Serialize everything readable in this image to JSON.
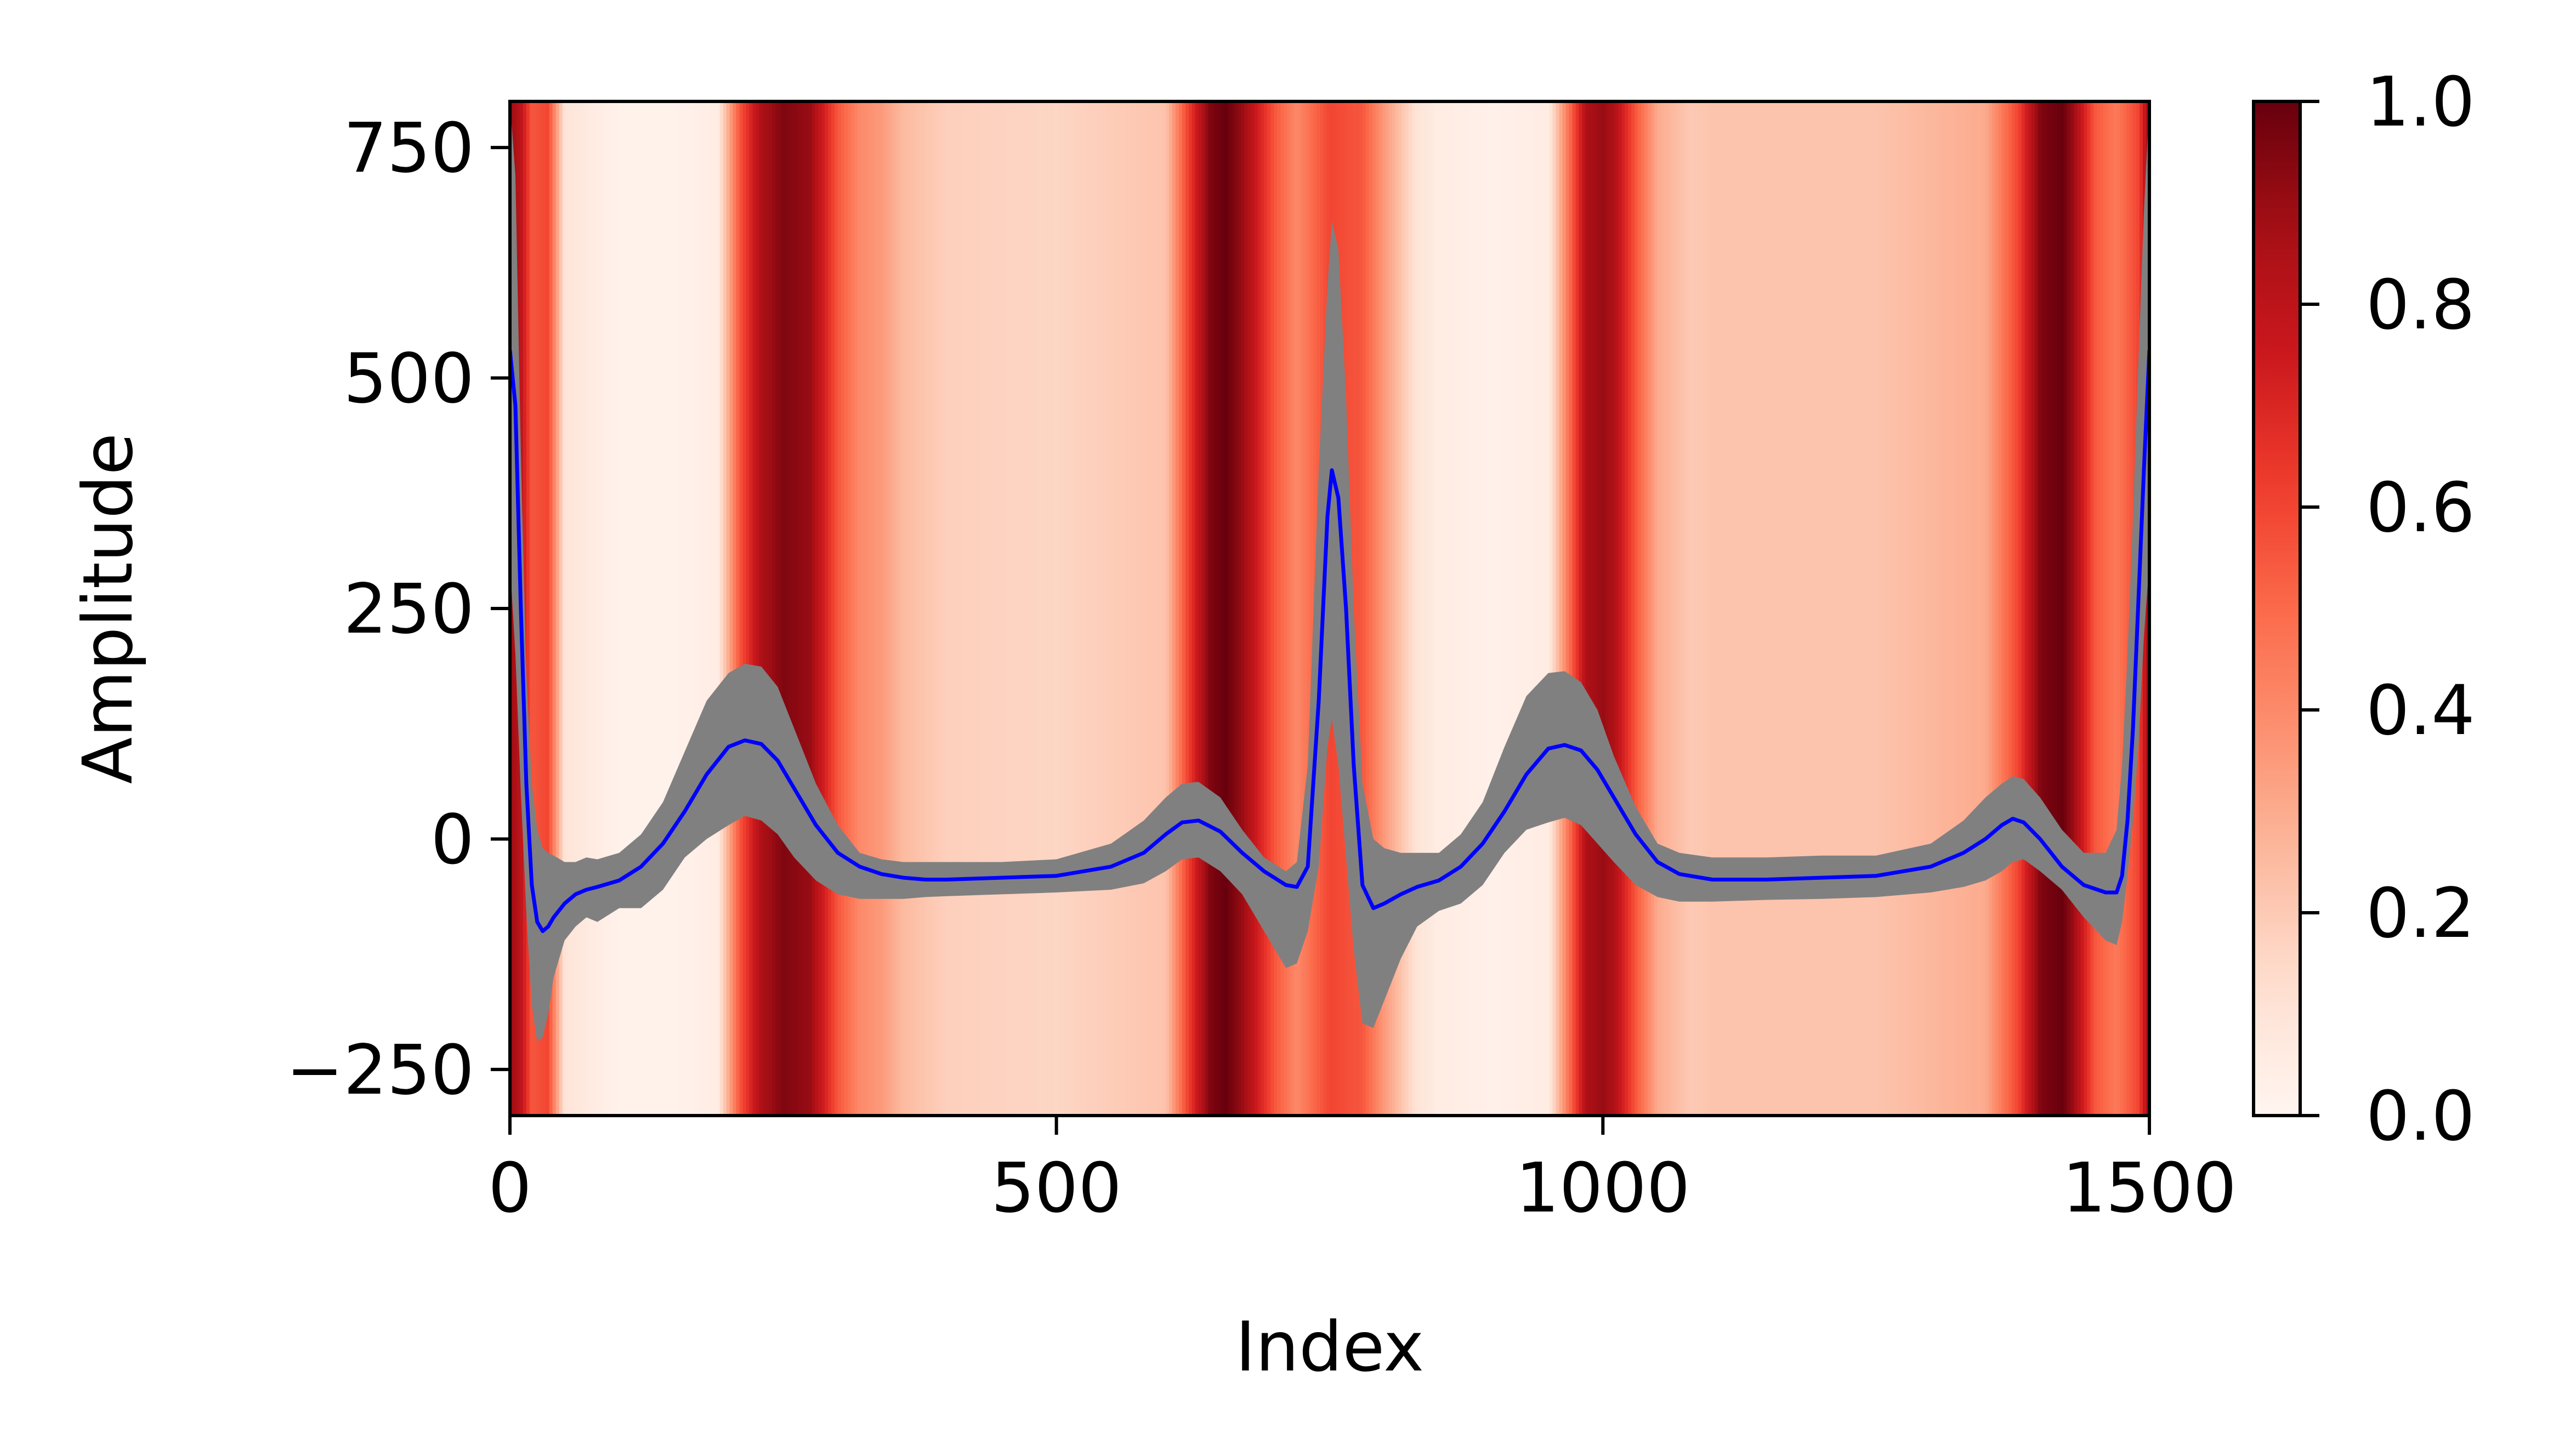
{
  "chart_data": {
    "type": "line",
    "xlabel": "Index",
    "ylabel": "Amplitude",
    "xlim": [
      0,
      1500
    ],
    "ylim": [
      -300,
      800
    ],
    "x_ticks": [
      0,
      500,
      1000,
      1500
    ],
    "x_tick_labels": [
      "0",
      "500",
      "1000",
      "1500"
    ],
    "y_ticks": [
      -250,
      0,
      250,
      500,
      750
    ],
    "y_tick_labels": [
      "−250",
      "0",
      "250",
      "500",
      "750"
    ],
    "grid": false,
    "legend": "none",
    "series": [
      {
        "role": "mean",
        "color": "#0000ff",
        "x": [
          0,
          5,
          10,
          15,
          20,
          25,
          30,
          35,
          40,
          50,
          60,
          70,
          80,
          100,
          120,
          140,
          160,
          180,
          200,
          215,
          230,
          245,
          260,
          280,
          300,
          320,
          340,
          360,
          380,
          400,
          450,
          500,
          550,
          580,
          600,
          615,
          630,
          650,
          670,
          690,
          710,
          720,
          730,
          740,
          748,
          752,
          758,
          765,
          772,
          780,
          790,
          800,
          815,
          830,
          850,
          870,
          890,
          910,
          930,
          950,
          965,
          980,
          995,
          1010,
          1030,
          1050,
          1070,
          1100,
          1150,
          1200,
          1250,
          1300,
          1330,
          1350,
          1365,
          1375,
          1385,
          1400,
          1420,
          1440,
          1460,
          1470,
          1475,
          1480,
          1485,
          1490,
          1495,
          1500
        ],
        "y": [
          530,
          470,
          250,
          60,
          -50,
          -90,
          -100,
          -95,
          -85,
          -70,
          -60,
          -55,
          -52,
          -45,
          -30,
          -5,
          30,
          70,
          100,
          107,
          103,
          85,
          55,
          15,
          -15,
          -30,
          -38,
          -42,
          -44,
          -44,
          -42,
          -40,
          -30,
          -15,
          5,
          18,
          20,
          8,
          -15,
          -35,
          -50,
          -52,
          -30,
          150,
          350,
          400,
          370,
          250,
          80,
          -50,
          -75,
          -70,
          -60,
          -52,
          -45,
          -30,
          -5,
          30,
          70,
          98,
          102,
          96,
          75,
          45,
          5,
          -25,
          -38,
          -44,
          -44,
          -42,
          -40,
          -30,
          -15,
          0,
          15,
          22,
          18,
          0,
          -30,
          -50,
          -58,
          -58,
          -40,
          20,
          120,
          260,
          400,
          530
        ]
      },
      {
        "role": "upper-band",
        "color": "#808080",
        "x": [
          0,
          5,
          10,
          15,
          20,
          25,
          30,
          35,
          40,
          50,
          60,
          70,
          80,
          100,
          120,
          140,
          160,
          180,
          200,
          215,
          230,
          245,
          260,
          280,
          300,
          320,
          340,
          360,
          380,
          400,
          450,
          500,
          550,
          580,
          600,
          615,
          630,
          650,
          670,
          690,
          710,
          720,
          730,
          740,
          748,
          752,
          758,
          765,
          772,
          780,
          790,
          800,
          815,
          830,
          850,
          870,
          890,
          910,
          930,
          950,
          965,
          980,
          995,
          1010,
          1030,
          1050,
          1070,
          1100,
          1150,
          1200,
          1250,
          1300,
          1330,
          1350,
          1365,
          1375,
          1385,
          1400,
          1420,
          1440,
          1460,
          1470,
          1475,
          1480,
          1485,
          1490,
          1495,
          1500
        ],
        "y": [
          800,
          720,
          420,
          180,
          60,
          10,
          -10,
          -15,
          -18,
          -25,
          -25,
          -20,
          -22,
          -15,
          5,
          40,
          95,
          150,
          180,
          190,
          187,
          165,
          120,
          60,
          15,
          -15,
          -22,
          -25,
          -25,
          -25,
          -25,
          -22,
          -5,
          20,
          45,
          60,
          62,
          45,
          10,
          -20,
          -35,
          -25,
          80,
          400,
          600,
          670,
          640,
          480,
          250,
          60,
          0,
          -10,
          -15,
          -15,
          -15,
          5,
          40,
          100,
          155,
          180,
          182,
          170,
          140,
          90,
          35,
          -5,
          -15,
          -20,
          -20,
          -18,
          -18,
          -5,
          20,
          45,
          60,
          68,
          65,
          45,
          10,
          -15,
          -15,
          10,
          80,
          200,
          350,
          520,
          680,
          800
        ]
      },
      {
        "role": "lower-band",
        "color": "#808080",
        "x": [
          0,
          5,
          10,
          15,
          20,
          25,
          30,
          35,
          40,
          50,
          60,
          70,
          80,
          100,
          120,
          140,
          160,
          180,
          200,
          215,
          230,
          245,
          260,
          280,
          300,
          320,
          340,
          360,
          380,
          400,
          450,
          500,
          550,
          580,
          600,
          615,
          630,
          650,
          670,
          690,
          710,
          720,
          730,
          740,
          748,
          752,
          758,
          765,
          772,
          780,
          790,
          800,
          815,
          830,
          850,
          870,
          890,
          910,
          930,
          950,
          965,
          980,
          995,
          1010,
          1030,
          1050,
          1070,
          1100,
          1150,
          1200,
          1250,
          1300,
          1330,
          1350,
          1365,
          1375,
          1385,
          1400,
          1420,
          1440,
          1460,
          1470,
          1475,
          1480,
          1485,
          1490,
          1495,
          1500
        ],
        "y": [
          300,
          200,
          50,
          -80,
          -180,
          -220,
          -215,
          -190,
          -150,
          -110,
          -95,
          -85,
          -90,
          -75,
          -75,
          -55,
          -20,
          0,
          15,
          25,
          20,
          5,
          -20,
          -45,
          -60,
          -65,
          -65,
          -65,
          -63,
          -62,
          -60,
          -58,
          -55,
          -48,
          -35,
          -22,
          -20,
          -35,
          -60,
          -100,
          -140,
          -135,
          -100,
          -30,
          100,
          130,
          80,
          -20,
          -120,
          -200,
          -205,
          -175,
          -130,
          -95,
          -78,
          -70,
          -50,
          -15,
          10,
          18,
          23,
          15,
          -5,
          -25,
          -50,
          -63,
          -68,
          -68,
          -66,
          -65,
          -63,
          -58,
          -52,
          -45,
          -35,
          -25,
          -22,
          -35,
          -55,
          -85,
          -110,
          -115,
          -90,
          -40,
          20,
          100,
          220,
          300
        ]
      }
    ],
    "heatmap_background": {
      "description_values": "column weights along x mapped to colorbar 0.0–1.0",
      "x": [
        0,
        10,
        20,
        35,
        50,
        100,
        150,
        190,
        210,
        230,
        250,
        275,
        300,
        320,
        340,
        360,
        400,
        500,
        600,
        620,
        640,
        655,
        670,
        700,
        720,
        750,
        780,
        800,
        830,
        850,
        900,
        950,
        970,
        985,
        1000,
        1010,
        1030,
        1050,
        1080,
        1100,
        1150,
        1250,
        1350,
        1380,
        1400,
        1420,
        1430,
        1450,
        1470,
        1490,
        1500
      ],
      "values": [
        0.9,
        0.8,
        0.55,
        0.6,
        0.1,
        0.02,
        0.02,
        0.05,
        0.55,
        0.85,
        0.95,
        0.9,
        0.55,
        0.4,
        0.35,
        0.25,
        0.18,
        0.16,
        0.22,
        0.6,
        0.95,
        1.0,
        0.9,
        0.55,
        0.4,
        0.6,
        0.55,
        0.35,
        0.1,
        0.05,
        0.03,
        0.05,
        0.5,
        0.85,
        0.9,
        0.85,
        0.55,
        0.3,
        0.2,
        0.22,
        0.22,
        0.22,
        0.3,
        0.6,
        0.95,
        1.0,
        0.9,
        0.55,
        0.45,
        0.6,
        0.9
      ]
    },
    "colorbar": {
      "colormap": "Reds",
      "range": [
        0,
        1
      ],
      "ticks": [
        0.0,
        0.2,
        0.4,
        0.6,
        0.8,
        1.0
      ],
      "tick_labels": [
        "0.0",
        "0.2",
        "0.4",
        "0.6",
        "0.8",
        "1.0"
      ]
    }
  }
}
